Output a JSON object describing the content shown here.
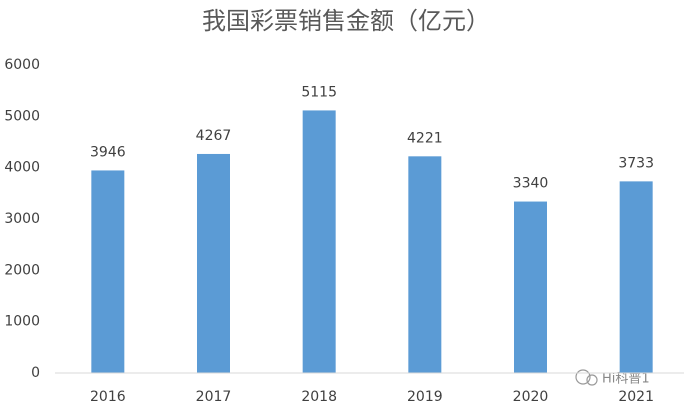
{
  "chart_data": {
    "type": "bar",
    "title": "我国彩票销售金额（亿元）",
    "categories": [
      "2016",
      "2017",
      "2018",
      "2019",
      "2020",
      "2021"
    ],
    "values": [
      3946,
      4267,
      5115,
      4221,
      3340,
      3733
    ],
    "color": "#5b9bd5",
    "ylim": [
      0,
      6000
    ],
    "yticks": [
      0,
      1000,
      2000,
      3000,
      4000,
      5000,
      6000
    ],
    "grid": false,
    "watermark": "Hi科普1"
  }
}
